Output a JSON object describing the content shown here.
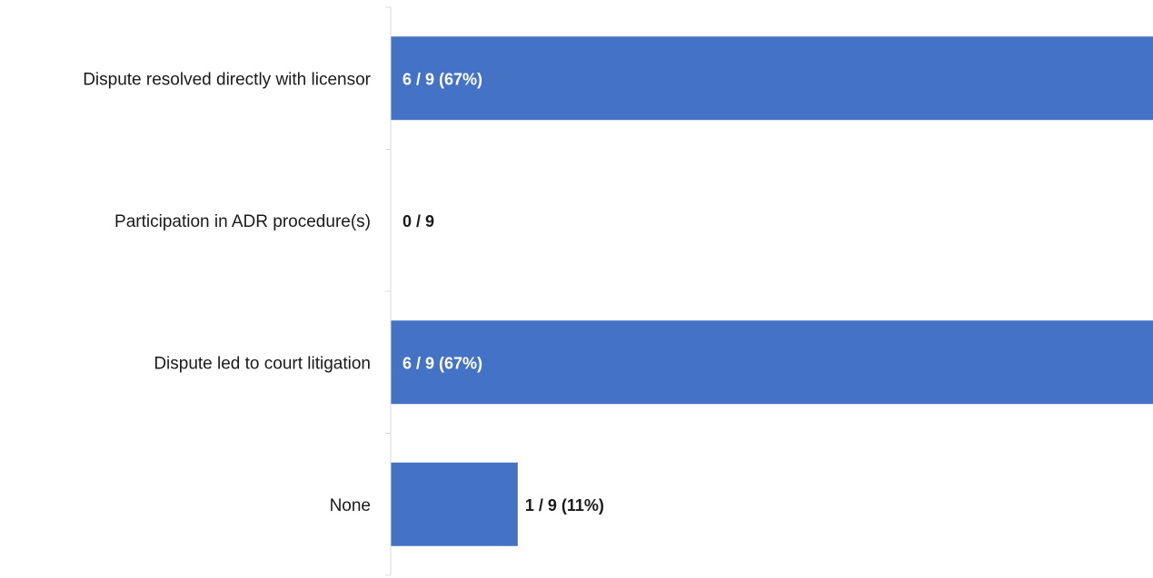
{
  "chart_data": {
    "type": "bar",
    "orientation": "horizontal",
    "categories": [
      "Dispute resolved directly with licensor",
      "Participation in ADR procedure(s)",
      "Dispute led to court litigation",
      "None"
    ],
    "values": [
      6,
      0,
      6,
      1
    ],
    "total": 9,
    "data_labels": [
      "6 / 9 (67%)",
      "0 / 9",
      "6 / 9 (67%)",
      "1 / 9 (11%)"
    ],
    "xlim": [
      0,
      6
    ],
    "title": "",
    "xlabel": "",
    "ylabel": "",
    "grid": false,
    "legend": "none",
    "colors": {
      "bar": "#4472C4",
      "axis": "#d9d9d9",
      "label_inside": "#ffffff",
      "label_outside": "#1a1a1a"
    }
  }
}
